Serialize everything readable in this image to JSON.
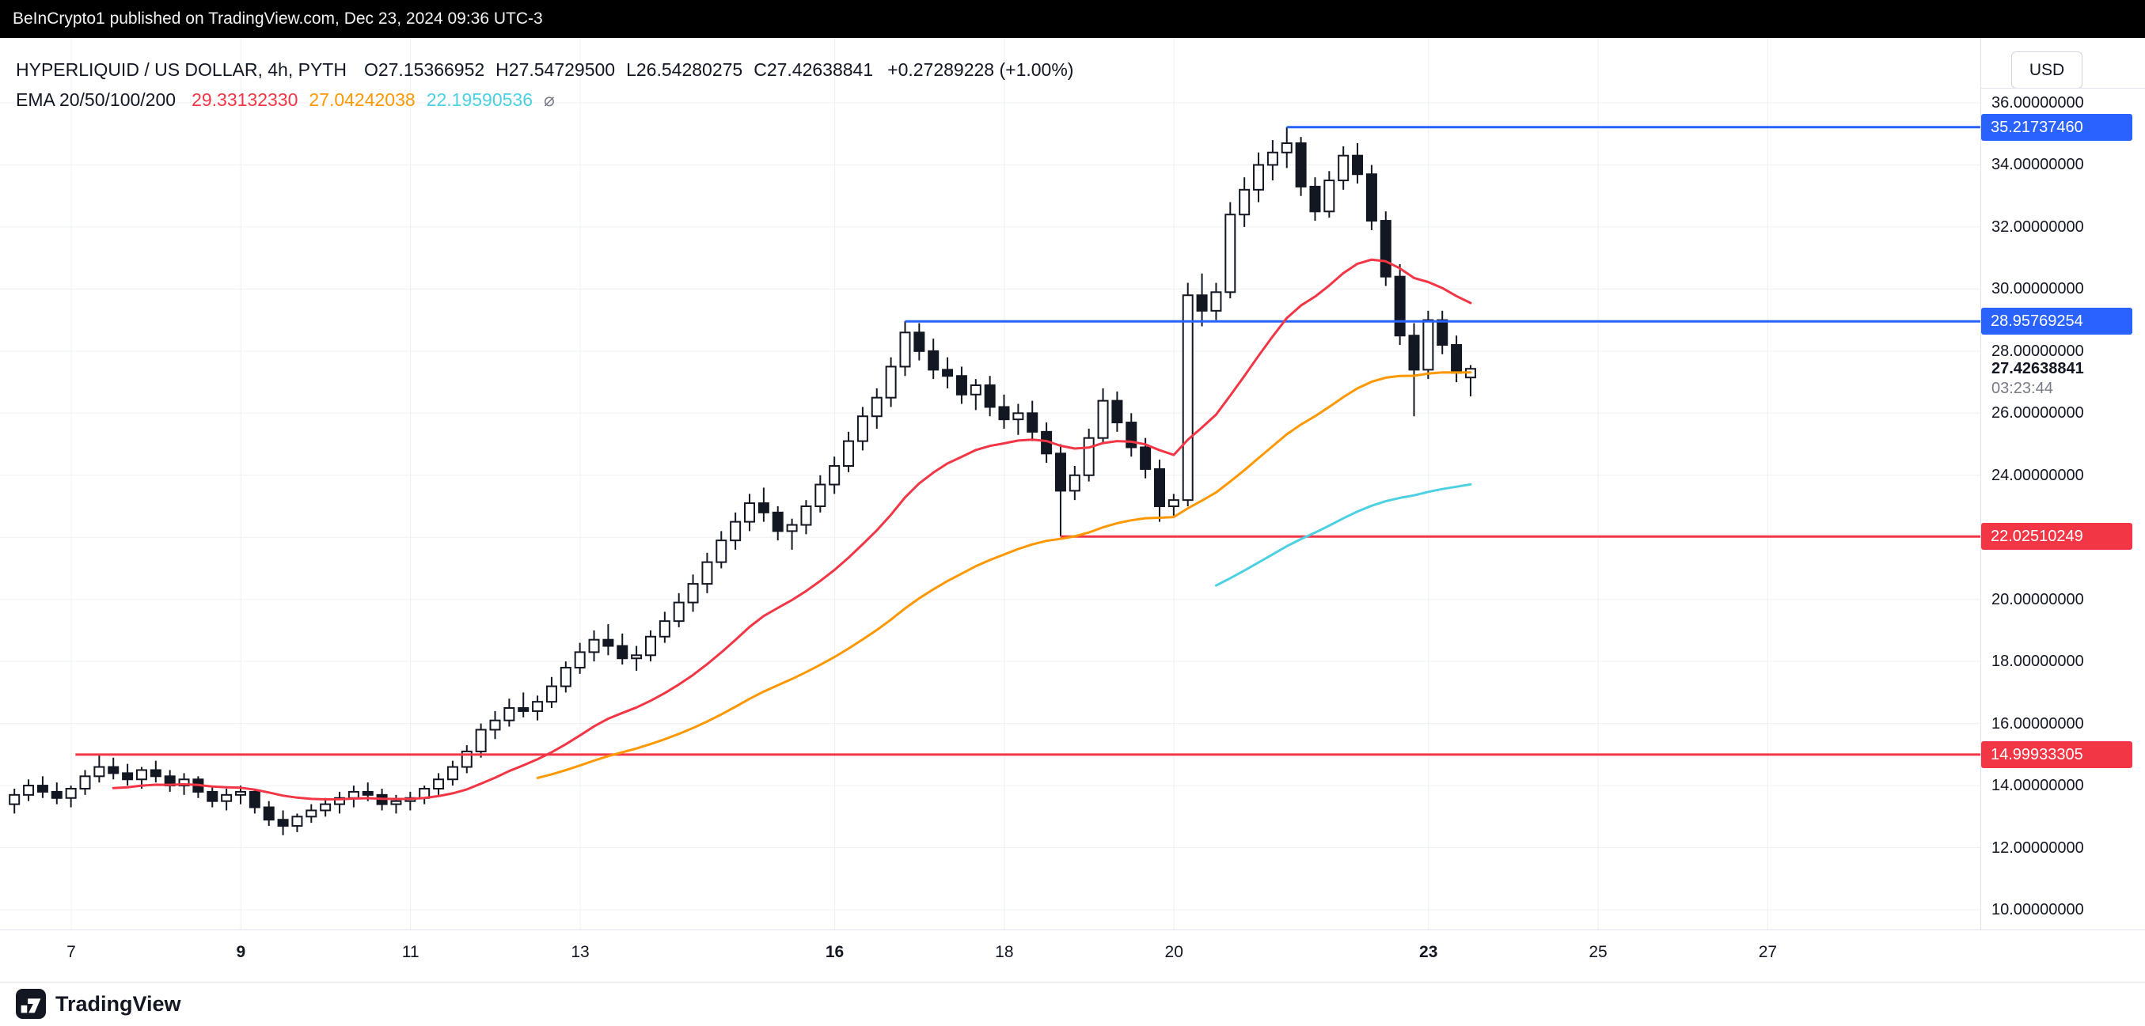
{
  "banner": {
    "text": "BeInCrypto1 published on TradingView.com, Dec 23, 2024 09:36 UTC-3"
  },
  "header": {
    "symbol": "HYPERLIQUID / US DOLLAR, 4h, PYTH",
    "ohlc": [
      {
        "k": "O",
        "v": "27.15366952"
      },
      {
        "k": "H",
        "v": "27.54729500"
      },
      {
        "k": "L",
        "v": "26.54280275"
      },
      {
        "k": "C",
        "v": "27.42638841"
      }
    ],
    "change": "+0.27289228 (+1.00%)",
    "indicator": {
      "label": "EMA 20/50/100/200",
      "values": [
        {
          "text": "29.33132330",
          "color": "#F23645"
        },
        {
          "text": "27.04242038",
          "color": "#FF9800"
        },
        {
          "text": "22.19590536",
          "color": "#4DD0E1"
        }
      ],
      "empty_symbol": "⌀"
    }
  },
  "price_axis": {
    "currency": "USD",
    "ticks": [
      {
        "price": 36,
        "label": "36.00000000"
      },
      {
        "price": 34,
        "label": "34.00000000"
      },
      {
        "price": 32,
        "label": "32.00000000"
      },
      {
        "price": 30,
        "label": "30.00000000"
      },
      {
        "price": 28,
        "label": "28.00000000"
      },
      {
        "price": 26,
        "label": "26.00000000"
      },
      {
        "price": 24,
        "label": "24.00000000"
      },
      {
        "price": 22,
        "label": "22.00000000"
      },
      {
        "price": 20,
        "label": "20.00000000"
      },
      {
        "price": 18,
        "label": "18.00000000"
      },
      {
        "price": 16,
        "label": "16.00000000"
      },
      {
        "price": 14,
        "label": "14.00000000"
      },
      {
        "price": 12,
        "label": "12.00000000"
      },
      {
        "price": 10,
        "label": "10.00000000"
      }
    ],
    "badges": [
      {
        "price": 35.2173746,
        "label": "35.21737460",
        "color": "#2962FF"
      },
      {
        "price": 28.95769254,
        "label": "28.95769254",
        "color": "#2962FF"
      },
      {
        "price": 22.02510249,
        "label": "22.02510249",
        "color": "#F23645"
      },
      {
        "price": 14.99933305,
        "label": "14.99933305",
        "color": "#F23645"
      }
    ],
    "current": {
      "price": 27.42638841,
      "label": "27.42638841",
      "countdown": "03:23:44"
    }
  },
  "time_axis": {
    "ticks": [
      {
        "day": 7,
        "label": "7",
        "bold": false
      },
      {
        "day": 9,
        "label": "9",
        "bold": true
      },
      {
        "day": 11,
        "label": "11",
        "bold": false
      },
      {
        "day": 13,
        "label": "13",
        "bold": false
      },
      {
        "day": 16,
        "label": "16",
        "bold": true
      },
      {
        "day": 18,
        "label": "18",
        "bold": false
      },
      {
        "day": 20,
        "label": "20",
        "bold": false
      },
      {
        "day": 23,
        "label": "23",
        "bold": true
      },
      {
        "day": 25,
        "label": "25",
        "bold": false
      },
      {
        "day": 27,
        "label": "27",
        "bold": false
      }
    ]
  },
  "footer": {
    "brand": "TradingView"
  },
  "chart_data": {
    "type": "candlestick",
    "title": "HYPERLIQUID / US DOLLAR, 4h, PYTH",
    "interval": "4h",
    "x_unit": "day of December 2024",
    "xlim": [
      6.1,
      28.4
    ],
    "ylim": [
      10,
      36
    ],
    "grid": true,
    "colors": {
      "grid": "#EDF0F5",
      "candle": "#131722",
      "up_fill": "#FFFFFF"
    },
    "candles": {
      "start_day": 6.33,
      "per_day": 6,
      "ohlc": [
        [
          13.4,
          13.9,
          13.1,
          13.7
        ],
        [
          13.7,
          14.2,
          13.5,
          14.0
        ],
        [
          14.0,
          14.3,
          13.6,
          13.8
        ],
        [
          13.8,
          14.1,
          13.4,
          13.6
        ],
        [
          13.6,
          14.0,
          13.3,
          13.9
        ],
        [
          13.9,
          14.5,
          13.7,
          14.3
        ],
        [
          14.3,
          15.0,
          14.1,
          14.6
        ],
        [
          14.6,
          14.9,
          14.2,
          14.4
        ],
        [
          14.4,
          14.7,
          14.0,
          14.2
        ],
        [
          14.2,
          14.6,
          13.9,
          14.5
        ],
        [
          14.5,
          14.8,
          14.1,
          14.3
        ],
        [
          14.3,
          14.5,
          13.8,
          14.0
        ],
        [
          14.0,
          14.4,
          13.7,
          14.2
        ],
        [
          14.2,
          14.3,
          13.6,
          13.8
        ],
        [
          13.8,
          14.0,
          13.3,
          13.5
        ],
        [
          13.5,
          13.9,
          13.2,
          13.7
        ],
        [
          13.7,
          14.0,
          13.4,
          13.8
        ],
        [
          13.8,
          13.9,
          13.1,
          13.3
        ],
        [
          13.3,
          13.5,
          12.7,
          12.9
        ],
        [
          12.9,
          13.2,
          12.4,
          12.7
        ],
        [
          12.7,
          13.1,
          12.5,
          13.0
        ],
        [
          13.0,
          13.4,
          12.8,
          13.2
        ],
        [
          13.2,
          13.6,
          13.0,
          13.4
        ],
        [
          13.4,
          13.8,
          13.1,
          13.6
        ],
        [
          13.6,
          14.0,
          13.3,
          13.8
        ],
        [
          13.8,
          14.1,
          13.5,
          13.7
        ],
        [
          13.7,
          13.9,
          13.2,
          13.4
        ],
        [
          13.4,
          13.7,
          13.1,
          13.5
        ],
        [
          13.5,
          13.8,
          13.2,
          13.6
        ],
        [
          13.6,
          14.0,
          13.4,
          13.9
        ],
        [
          13.9,
          14.4,
          13.7,
          14.2
        ],
        [
          14.2,
          14.8,
          14.0,
          14.6
        ],
        [
          14.6,
          15.3,
          14.4,
          15.1
        ],
        [
          15.1,
          16.0,
          14.9,
          15.8
        ],
        [
          15.8,
          16.4,
          15.5,
          16.1
        ],
        [
          16.1,
          16.8,
          15.9,
          16.5
        ],
        [
          16.5,
          17.0,
          16.2,
          16.4
        ],
        [
          16.4,
          16.9,
          16.1,
          16.7
        ],
        [
          16.7,
          17.5,
          16.5,
          17.2
        ],
        [
          17.2,
          18.0,
          17.0,
          17.8
        ],
        [
          17.8,
          18.6,
          17.6,
          18.3
        ],
        [
          18.3,
          19.0,
          18.0,
          18.7
        ],
        [
          18.7,
          19.2,
          18.2,
          18.5
        ],
        [
          18.5,
          18.9,
          17.9,
          18.1
        ],
        [
          18.1,
          18.5,
          17.7,
          18.2
        ],
        [
          18.2,
          19.0,
          18.0,
          18.8
        ],
        [
          18.8,
          19.6,
          18.6,
          19.3
        ],
        [
          19.3,
          20.2,
          19.1,
          19.9
        ],
        [
          19.9,
          20.8,
          19.6,
          20.5
        ],
        [
          20.5,
          21.5,
          20.2,
          21.2
        ],
        [
          21.2,
          22.2,
          21.0,
          21.9
        ],
        [
          21.9,
          22.8,
          21.6,
          22.5
        ],
        [
          22.5,
          23.4,
          22.2,
          23.1
        ],
        [
          23.1,
          23.6,
          22.5,
          22.8
        ],
        [
          22.8,
          23.0,
          21.9,
          22.2
        ],
        [
          22.2,
          22.6,
          21.6,
          22.4
        ],
        [
          22.4,
          23.2,
          22.1,
          23.0
        ],
        [
          23.0,
          24.0,
          22.8,
          23.7
        ],
        [
          23.7,
          24.6,
          23.4,
          24.3
        ],
        [
          24.3,
          25.4,
          24.1,
          25.1
        ],
        [
          25.1,
          26.2,
          24.8,
          25.9
        ],
        [
          25.9,
          26.8,
          25.5,
          26.5
        ],
        [
          26.5,
          27.8,
          26.2,
          27.5
        ],
        [
          27.5,
          28.96,
          27.2,
          28.6
        ],
        [
          28.6,
          28.9,
          27.7,
          28.0
        ],
        [
          28.0,
          28.4,
          27.1,
          27.4
        ],
        [
          27.4,
          27.8,
          26.8,
          27.2
        ],
        [
          27.2,
          27.5,
          26.3,
          26.6
        ],
        [
          26.6,
          27.1,
          26.1,
          26.9
        ],
        [
          26.9,
          27.2,
          25.9,
          26.2
        ],
        [
          26.2,
          26.6,
          25.5,
          25.8
        ],
        [
          25.8,
          26.3,
          25.3,
          26.0
        ],
        [
          26.0,
          26.4,
          25.1,
          25.4
        ],
        [
          25.4,
          25.7,
          24.4,
          24.7
        ],
        [
          24.7,
          25.0,
          22.03,
          23.5
        ],
        [
          23.5,
          24.3,
          23.2,
          24.0
        ],
        [
          24.0,
          25.5,
          23.8,
          25.2
        ],
        [
          25.2,
          26.8,
          25.0,
          26.4
        ],
        [
          26.4,
          26.7,
          25.4,
          25.7
        ],
        [
          25.7,
          26.0,
          24.6,
          24.9
        ],
        [
          24.9,
          25.2,
          23.9,
          24.2
        ],
        [
          24.2,
          24.5,
          22.5,
          23.0
        ],
        [
          23.0,
          23.4,
          22.7,
          23.2
        ],
        [
          23.2,
          30.2,
          23.0,
          29.8
        ],
        [
          29.8,
          30.5,
          28.8,
          29.3
        ],
        [
          29.3,
          30.2,
          29.0,
          29.9
        ],
        [
          29.9,
          32.8,
          29.7,
          32.4
        ],
        [
          32.4,
          33.6,
          32.0,
          33.2
        ],
        [
          33.2,
          34.4,
          32.8,
          34.0
        ],
        [
          34.0,
          34.8,
          33.5,
          34.4
        ],
        [
          34.4,
          35.217,
          33.9,
          34.7
        ],
        [
          34.7,
          34.9,
          33.0,
          33.3
        ],
        [
          33.3,
          33.6,
          32.2,
          32.5
        ],
        [
          32.5,
          33.8,
          32.3,
          33.5
        ],
        [
          33.5,
          34.6,
          33.2,
          34.3
        ],
        [
          34.3,
          34.7,
          33.4,
          33.7
        ],
        [
          33.7,
          34.0,
          31.9,
          32.2
        ],
        [
          32.2,
          32.5,
          30.1,
          30.4
        ],
        [
          30.4,
          30.8,
          28.2,
          28.5
        ],
        [
          28.5,
          28.9,
          25.9,
          27.4
        ],
        [
          27.4,
          29.3,
          27.1,
          29.0
        ],
        [
          29.0,
          29.3,
          27.9,
          28.2
        ],
        [
          28.2,
          28.5,
          27.0,
          27.3
        ],
        [
          27.15,
          27.55,
          26.54,
          27.43
        ]
      ]
    },
    "emas": [
      {
        "period": 20,
        "color": "#F23645",
        "draw_from": 7,
        "last_value": 29.3313233
      },
      {
        "period": 50,
        "color": "#FF9800",
        "draw_from": 37,
        "last_value": 27.04242038
      },
      {
        "period": 100,
        "color": "#4DD0E1",
        "draw_from": 85,
        "last_value": 22.19590536
      }
    ],
    "lines": [
      {
        "price": 35.2173746,
        "start_day": 21.33,
        "color": "#2962FF"
      },
      {
        "price": 28.95769254,
        "start_day": 16.83,
        "color": "#2962FF"
      },
      {
        "price": 22.02510249,
        "start_day": 18.66,
        "color": "#F23645"
      },
      {
        "price": 14.99933305,
        "start_day": 7.05,
        "color": "#F23645"
      }
    ]
  }
}
